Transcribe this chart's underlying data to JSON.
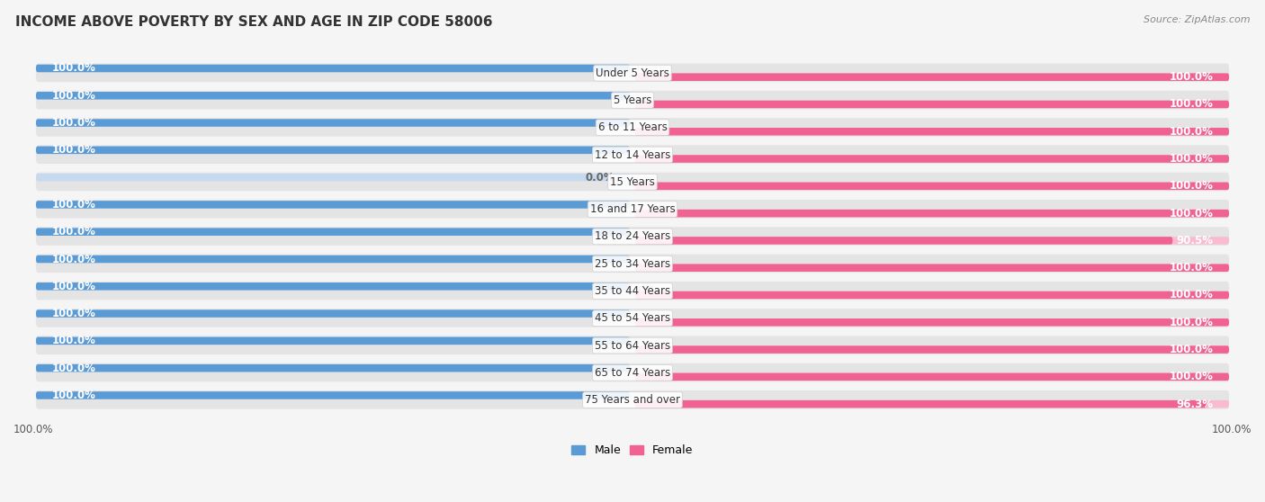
{
  "title": "INCOME ABOVE POVERTY BY SEX AND AGE IN ZIP CODE 58006",
  "source": "Source: ZipAtlas.com",
  "categories": [
    "Under 5 Years",
    "5 Years",
    "6 to 11 Years",
    "12 to 14 Years",
    "15 Years",
    "16 and 17 Years",
    "18 to 24 Years",
    "25 to 34 Years",
    "35 to 44 Years",
    "45 to 54 Years",
    "55 to 64 Years",
    "65 to 74 Years",
    "75 Years and over"
  ],
  "male_values": [
    100.0,
    100.0,
    100.0,
    100.0,
    0.0,
    100.0,
    100.0,
    100.0,
    100.0,
    100.0,
    100.0,
    100.0,
    100.0
  ],
  "female_values": [
    100.0,
    100.0,
    100.0,
    100.0,
    100.0,
    100.0,
    90.5,
    100.0,
    100.0,
    100.0,
    100.0,
    100.0,
    96.3
  ],
  "male_color": "#5b9bd5",
  "female_color": "#f06292",
  "male_color_light": "#c5d9ef",
  "female_color_light": "#f8bbd0",
  "bg_color": "#f0f0f0",
  "row_bg": "#e8e8e8",
  "bar_bg": "#e0e8f0",
  "title_fontsize": 11,
  "label_fontsize": 8.5,
  "value_fontsize": 8.5,
  "tick_fontsize": 8.5,
  "legend_fontsize": 9
}
